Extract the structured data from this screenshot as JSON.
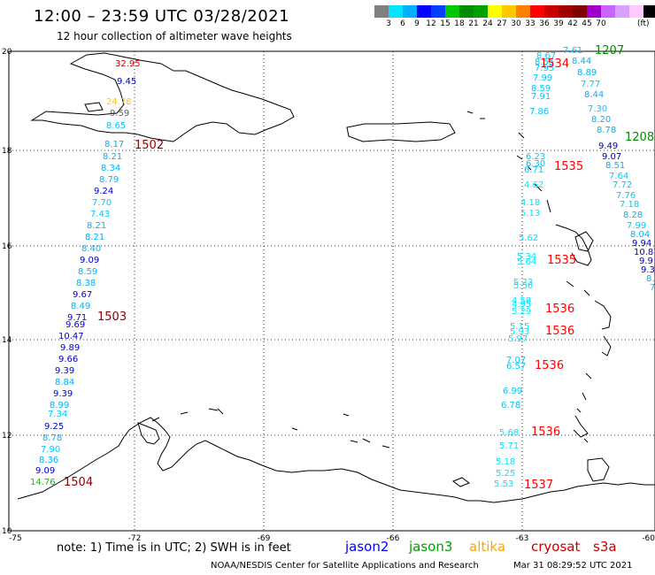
{
  "title": "12:00 – 23:59 UTC 03/28/2021",
  "subtitle": "12 hour collection of altimeter wave heights",
  "scale": {
    "colors": [
      "#808080",
      "#00e5ff",
      "#00b0ff",
      "#0000ff",
      "#0040ff",
      "#00c800",
      "#008c00",
      "#00a000",
      "#ffff00",
      "#ffc800",
      "#ff8000",
      "#ff0000",
      "#c80000",
      "#a00000",
      "#800000",
      "#a000c8",
      "#c864ff",
      "#d8a0ff",
      "#ffc8ff",
      "#000000"
    ],
    "labels": [
      "3",
      "6",
      "9",
      "12",
      "15",
      "18",
      "21",
      "24",
      "27",
      "30",
      "33",
      "36",
      "39",
      "42",
      "45",
      "70"
    ],
    "unit": "(ft)"
  },
  "axes": {
    "x_ticks": [
      "-75",
      "-72",
      "-69",
      "-66",
      "-63",
      "-60"
    ],
    "y_ticks": [
      "20",
      "18",
      "16",
      "14",
      "12",
      "10"
    ]
  },
  "track_times": [
    {
      "text": "1502",
      "color": "#8b0000"
    },
    {
      "text": "1503",
      "color": "#8b0000"
    },
    {
      "text": "1504",
      "color": "#8b0000"
    },
    {
      "text": "1207",
      "color": "#008c00"
    },
    {
      "text": "1208",
      "color": "#008c00"
    },
    {
      "text": "1534",
      "color": "#ff0000"
    },
    {
      "text": "1535",
      "color": "#ff0000"
    },
    {
      "text": "1535",
      "color": "#ff0000"
    },
    {
      "text": "1536",
      "color": "#ff0000"
    },
    {
      "text": "1536",
      "color": "#ff0000"
    },
    {
      "text": "1536",
      "color": "#ff0000"
    },
    {
      "text": "1536",
      "color": "#ff0000"
    },
    {
      "text": "1537",
      "color": "#ff0000"
    }
  ],
  "west_track": [
    {
      "v": "32.95",
      "c": "#c80000"
    },
    {
      "v": "9.45",
      "c": "#0000c8"
    },
    {
      "v": "24.78",
      "c": "#ffc800"
    },
    {
      "v": "9.59",
      "c": "#606060"
    },
    {
      "v": "8.65",
      "c": "#00c8ff"
    },
    {
      "v": "8.17",
      "c": "#00b0ff"
    },
    {
      "v": "8.21",
      "c": "#00b0ff"
    },
    {
      "v": "8.34",
      "c": "#00b0ff"
    },
    {
      "v": "8.79",
      "c": "#00b0ff"
    },
    {
      "v": "9.24",
      "c": "#0000c8"
    },
    {
      "v": "7.70",
      "c": "#00c8ff"
    },
    {
      "v": "7.43",
      "c": "#00c8ff"
    },
    {
      "v": "8.21",
      "c": "#00b0ff"
    },
    {
      "v": "8.21",
      "c": "#00b0ff"
    },
    {
      "v": "8.40",
      "c": "#00b0ff"
    },
    {
      "v": "9.09",
      "c": "#0000c8"
    },
    {
      "v": "8.59",
      "c": "#00b0ff"
    },
    {
      "v": "8.38",
      "c": "#00b0ff"
    },
    {
      "v": "9.67",
      "c": "#0000c8"
    },
    {
      "v": "8.49",
      "c": "#00b0ff"
    },
    {
      "v": "9.71",
      "c": "#0000c8"
    },
    {
      "v": "9.69",
      "c": "#0000c8"
    },
    {
      "v": "10.47",
      "c": "#0000c8"
    },
    {
      "v": "9.89",
      "c": "#0000c8"
    },
    {
      "v": "9.66",
      "c": "#0000c8"
    },
    {
      "v": "9.39",
      "c": "#0000c8"
    },
    {
      "v": "8.84",
      "c": "#00b0ff"
    },
    {
      "v": "9.39",
      "c": "#0000c8"
    },
    {
      "v": "8.99",
      "c": "#00b0ff"
    },
    {
      "v": "7.34",
      "c": "#00c8ff"
    },
    {
      "v": "9.25",
      "c": "#0000c8"
    },
    {
      "v": "8.78",
      "c": "#00b0ff"
    },
    {
      "v": "7.90",
      "c": "#00c8ff"
    },
    {
      "v": "8.36",
      "c": "#00b0ff"
    },
    {
      "v": "9.09",
      "c": "#0000c8"
    },
    {
      "v": "14.76",
      "c": "#00c800"
    }
  ],
  "mid_track": [
    {
      "v": "8.67",
      "c": "#00c8ff"
    },
    {
      "v": "8.55",
      "c": "#00c8ff"
    },
    {
      "v": "7.95",
      "c": "#00c8ff"
    },
    {
      "v": "7.99",
      "c": "#00c8ff"
    },
    {
      "v": "8.59",
      "c": "#00c8ff"
    },
    {
      "v": "7.91",
      "c": "#00c8ff"
    },
    {
      "v": "7.86",
      "c": "#00c8ff"
    },
    {
      "v": "6.23",
      "c": "#00c8ff"
    },
    {
      "v": "6.30",
      "c": "#00c8ff"
    },
    {
      "v": "6.71",
      "c": "#00c8ff"
    },
    {
      "v": "4.62",
      "c": "#00e5ff"
    },
    {
      "v": "4.18",
      "c": "#00e5ff"
    },
    {
      "v": "5.13",
      "c": "#00e5ff"
    },
    {
      "v": "5.62",
      "c": "#00e5ff"
    },
    {
      "v": "5.34",
      "c": "#00e5ff"
    },
    {
      "v": "5.64",
      "c": "#00e5ff"
    },
    {
      "v": "5.23",
      "c": "#00e5ff"
    },
    {
      "v": "5.56",
      "c": "#00e5ff"
    },
    {
      "v": "4.58",
      "c": "#00e5ff"
    },
    {
      "v": "4.95",
      "c": "#00e5ff"
    },
    {
      "v": "5.29",
      "c": "#00e5ff"
    },
    {
      "v": "5.15",
      "c": "#00e5ff"
    },
    {
      "v": "5.93",
      "c": "#00e5ff"
    },
    {
      "v": "5.97",
      "c": "#00e5ff"
    },
    {
      "v": "7.07",
      "c": "#00c8ff"
    },
    {
      "v": "6.57",
      "c": "#00c8ff"
    },
    {
      "v": "6.99",
      "c": "#00c8ff"
    },
    {
      "v": "6.78",
      "c": "#00c8ff"
    },
    {
      "v": "5.68",
      "c": "#00e5ff"
    },
    {
      "v": "5.71",
      "c": "#00e5ff"
    },
    {
      "v": "5.18",
      "c": "#00e5ff"
    },
    {
      "v": "5.25",
      "c": "#00e5ff"
    },
    {
      "v": "5.53",
      "c": "#00e5ff"
    }
  ],
  "east_track": [
    {
      "v": "7.61",
      "c": "#00c8ff"
    },
    {
      "v": "8.44",
      "c": "#00b0ff"
    },
    {
      "v": "8.89",
      "c": "#00b0ff"
    },
    {
      "v": "7.77",
      "c": "#00c8ff"
    },
    {
      "v": "8.44",
      "c": "#00b0ff"
    },
    {
      "v": "7.30",
      "c": "#00c8ff"
    },
    {
      "v": "8.20",
      "c": "#00b0ff"
    },
    {
      "v": "8.78",
      "c": "#00b0ff"
    },
    {
      "v": "9.49",
      "c": "#0000c8"
    },
    {
      "v": "9.07",
      "c": "#0000c8"
    },
    {
      "v": "8.51",
      "c": "#00b0ff"
    },
    {
      "v": "7.64",
      "c": "#00c8ff"
    },
    {
      "v": "7.72",
      "c": "#00c8ff"
    },
    {
      "v": "7.76",
      "c": "#00c8ff"
    },
    {
      "v": "7.18",
      "c": "#00c8ff"
    },
    {
      "v": "8.28",
      "c": "#00b0ff"
    },
    {
      "v": "7.99",
      "c": "#00c8ff"
    },
    {
      "v": "8.04",
      "c": "#00b0ff"
    },
    {
      "v": "9.94",
      "c": "#0000c8"
    },
    {
      "v": "10.87",
      "c": "#0000c8"
    },
    {
      "v": "9.9",
      "c": "#0000c8"
    },
    {
      "v": "9.3",
      "c": "#0000c8"
    },
    {
      "v": "8.",
      "c": "#00b0ff"
    },
    {
      "v": "7",
      "c": "#00c8ff"
    }
  ],
  "footer": {
    "note": "note:  1) Time is in UTC;  2) SWH is in feet",
    "satellites": [
      {
        "name": "jason2",
        "color": "#0000ff"
      },
      {
        "name": "jason3",
        "color": "#00a000"
      },
      {
        "name": "altika",
        "color": "#ffa500"
      },
      {
        "name": "cryosat",
        "color": "#c80000"
      },
      {
        "name": "s3a",
        "color": "#c80000"
      }
    ],
    "credit": "NOAA/NESDIS Center for Satellite Applications and Research",
    "timestamp": "Mar 31 08:29:52 UTC 2021"
  }
}
